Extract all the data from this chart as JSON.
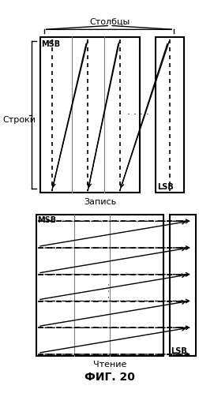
{
  "title_top": "Столбцы",
  "label_rows": "Строки",
  "label_write": "Запись",
  "label_read": "Чтение",
  "label_fig": "ФИГ. 20",
  "label_msb": "MSB",
  "label_lsb": "LSB",
  "bg_color": "#ffffff",
  "box_color": "#000000",
  "arrow_color": "#000000",
  "dot_color": "#000000"
}
